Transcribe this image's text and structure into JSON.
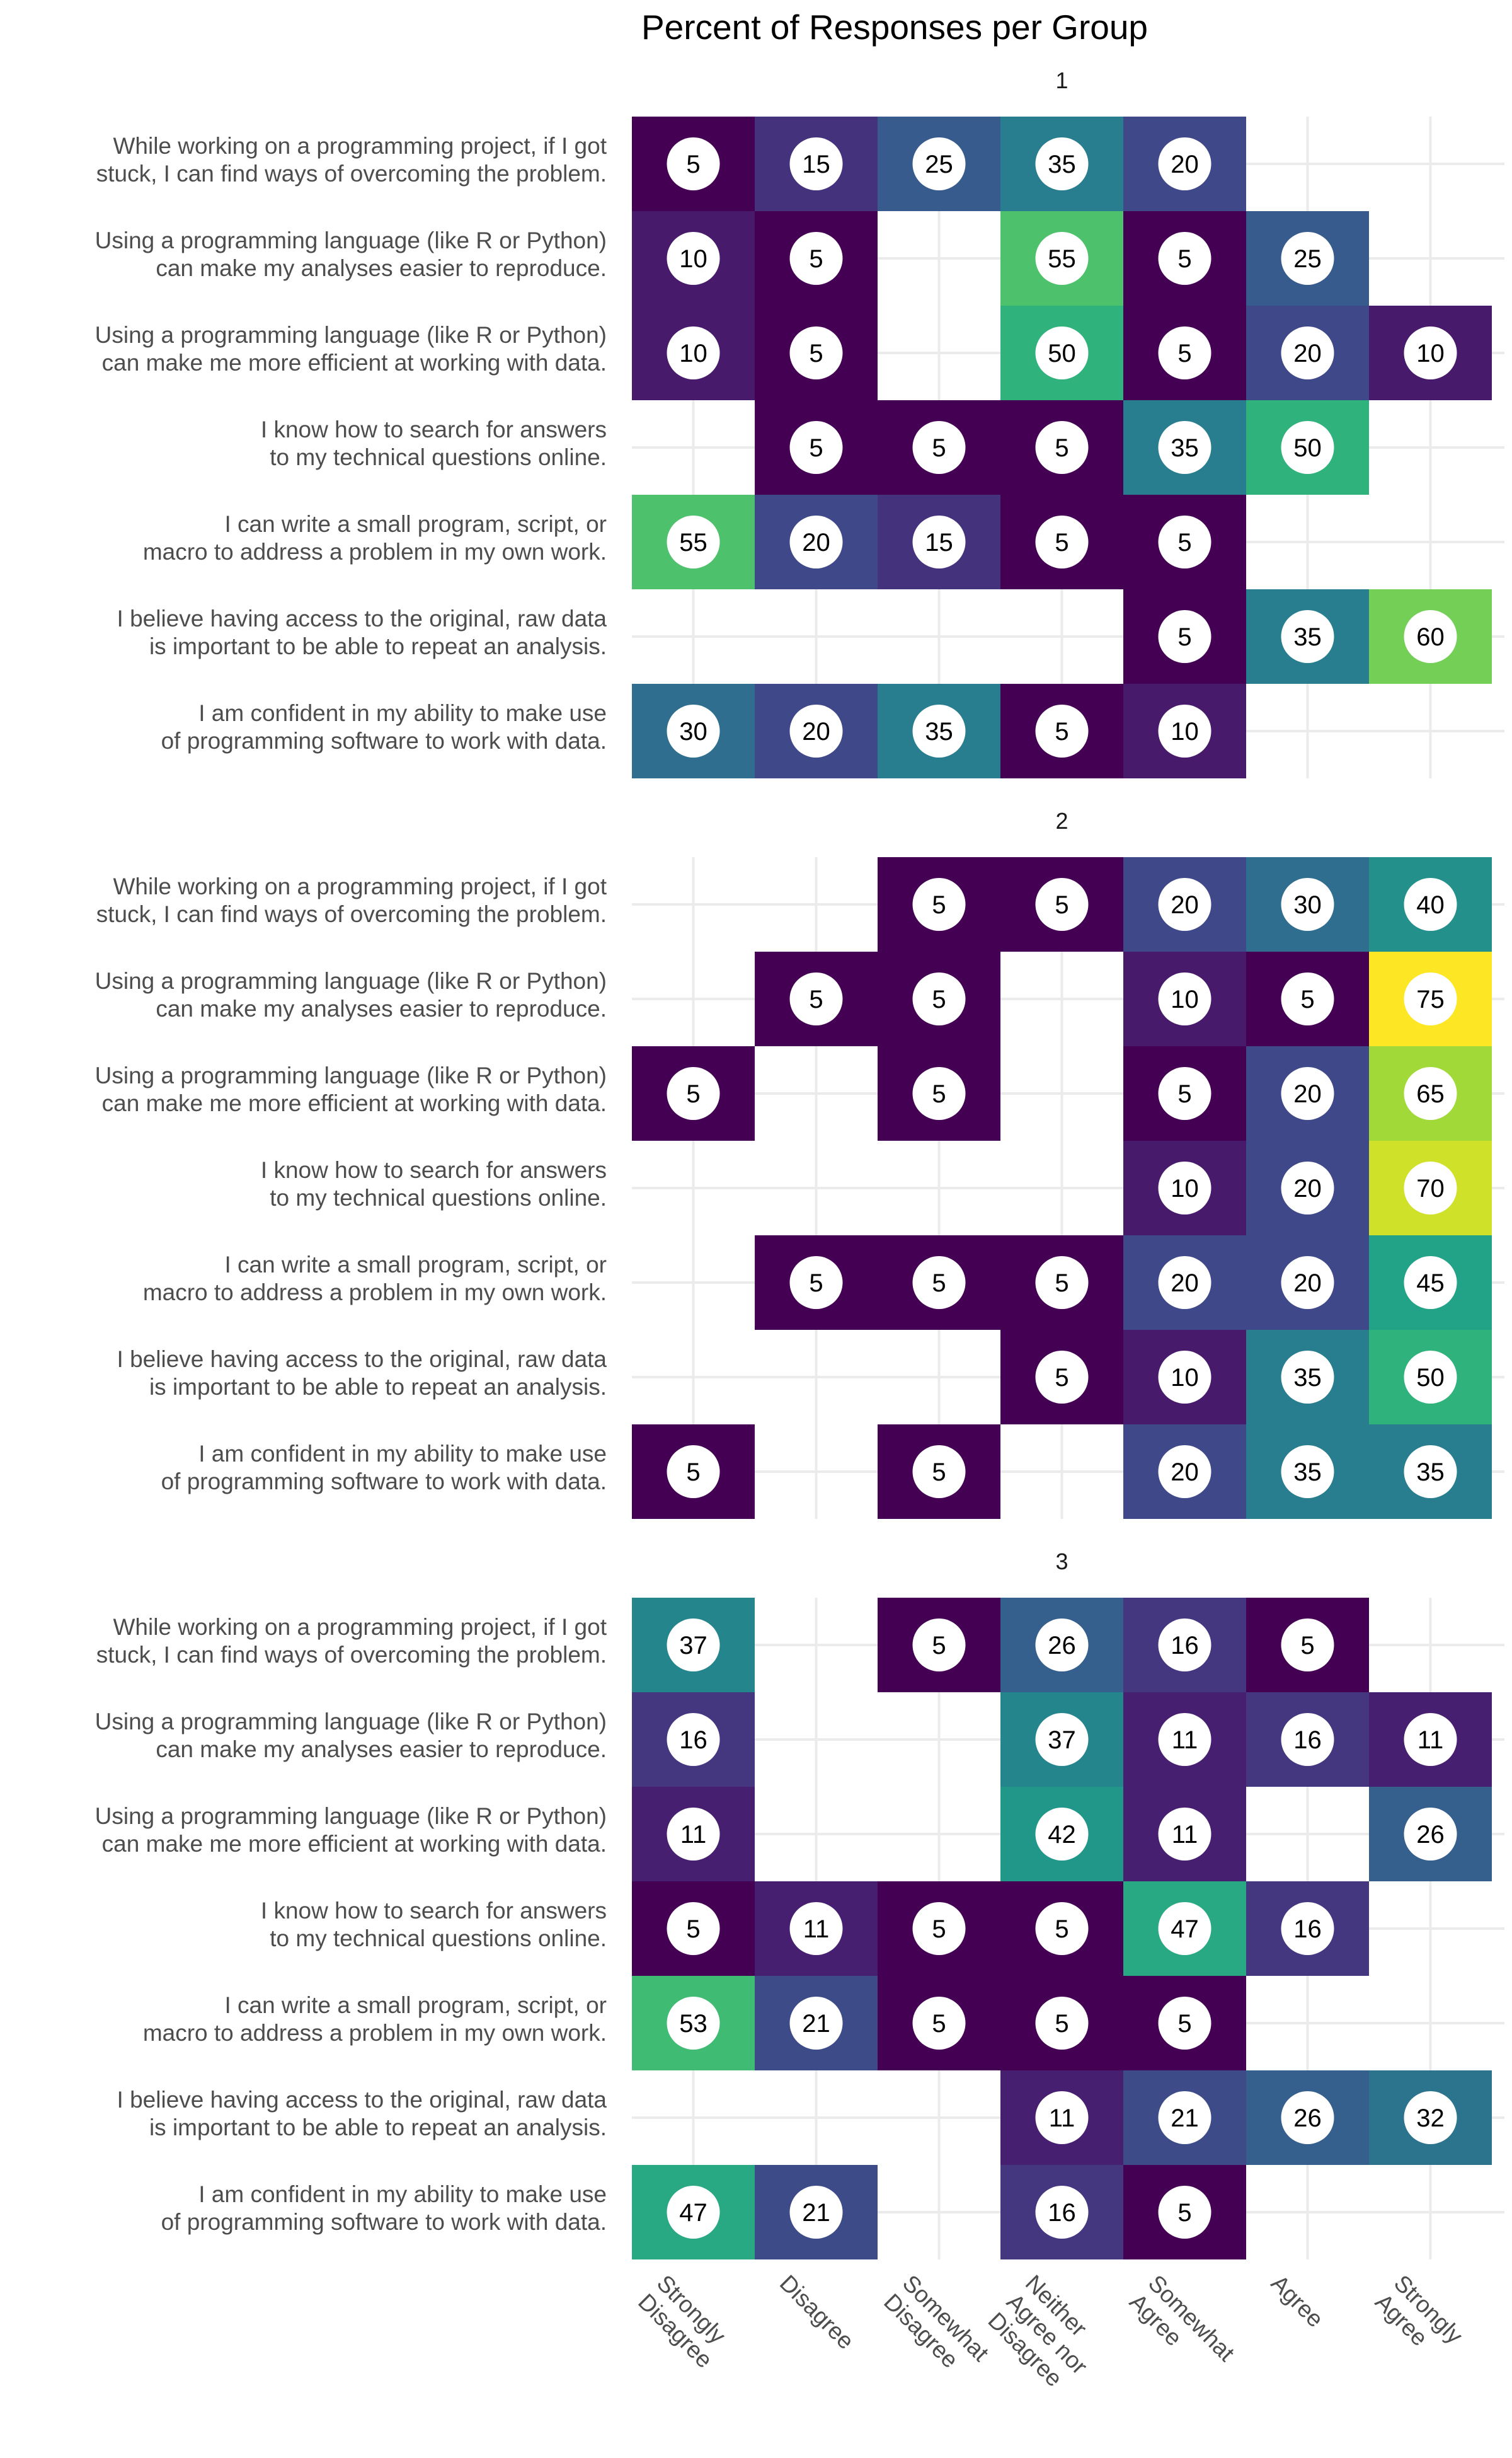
{
  "chart_data": {
    "type": "heatmap",
    "title": "Percent of Responses per Group",
    "columns": [
      "Strongly Disagree",
      "Disagree",
      "Somewhat Disagree",
      "Neither Agree nor Disagree",
      "Somewhat Agree",
      "Agree",
      "Strongly Agree"
    ],
    "rows": [
      "While working on a programming project, if I got stuck, I can find ways of overcoming the problem.",
      "Using a programming language (like R or Python) can make my analyses easier to reproduce.",
      "Using a programming language (like R or Python) can make me more efficient at working with data.",
      "I know how to search for answers to my technical questions online.",
      "I can write a small program, script, or macro to address a problem in my own work.",
      "I believe having access to the original, raw data is important to be able to repeat an analysis.",
      "I am confident in my ability to make use of programming software to work with data."
    ],
    "value_range": [
      5,
      75
    ],
    "color_scale": [
      "#440154",
      "#482878",
      "#3e4a89",
      "#31688e",
      "#26828e",
      "#1f9e89",
      "#35b779",
      "#6ece58",
      "#b5de2b",
      "#fde725"
    ],
    "grid": true,
    "facets": [
      {
        "name": "1",
        "values": [
          [
            5,
            15,
            25,
            35,
            20,
            null,
            null
          ],
          [
            10,
            5,
            null,
            55,
            5,
            25,
            null
          ],
          [
            10,
            5,
            null,
            50,
            5,
            20,
            10
          ],
          [
            null,
            5,
            5,
            5,
            35,
            50,
            null
          ],
          [
            55,
            20,
            15,
            5,
            5,
            null,
            null
          ],
          [
            null,
            null,
            null,
            null,
            5,
            35,
            60
          ],
          [
            30,
            20,
            35,
            5,
            10,
            null,
            null
          ]
        ]
      },
      {
        "name": "2",
        "values": [
          [
            null,
            null,
            5,
            5,
            20,
            30,
            40
          ],
          [
            null,
            5,
            5,
            null,
            10,
            5,
            75
          ],
          [
            5,
            null,
            5,
            null,
            5,
            20,
            65
          ],
          [
            null,
            null,
            null,
            null,
            10,
            20,
            70
          ],
          [
            null,
            5,
            5,
            5,
            20,
            20,
            45
          ],
          [
            null,
            null,
            null,
            5,
            10,
            35,
            50
          ],
          [
            5,
            null,
            5,
            null,
            20,
            35,
            35
          ]
        ]
      },
      {
        "name": "3",
        "values": [
          [
            37,
            null,
            5,
            26,
            16,
            5,
            null
          ],
          [
            16,
            null,
            null,
            37,
            11,
            16,
            11
          ],
          [
            11,
            null,
            null,
            42,
            11,
            null,
            26
          ],
          [
            5,
            11,
            5,
            5,
            47,
            16,
            null
          ],
          [
            53,
            21,
            5,
            5,
            5,
            null,
            null
          ],
          [
            null,
            null,
            null,
            11,
            21,
            26,
            32
          ],
          [
            47,
            21,
            null,
            16,
            5,
            null,
            null
          ]
        ]
      }
    ]
  }
}
